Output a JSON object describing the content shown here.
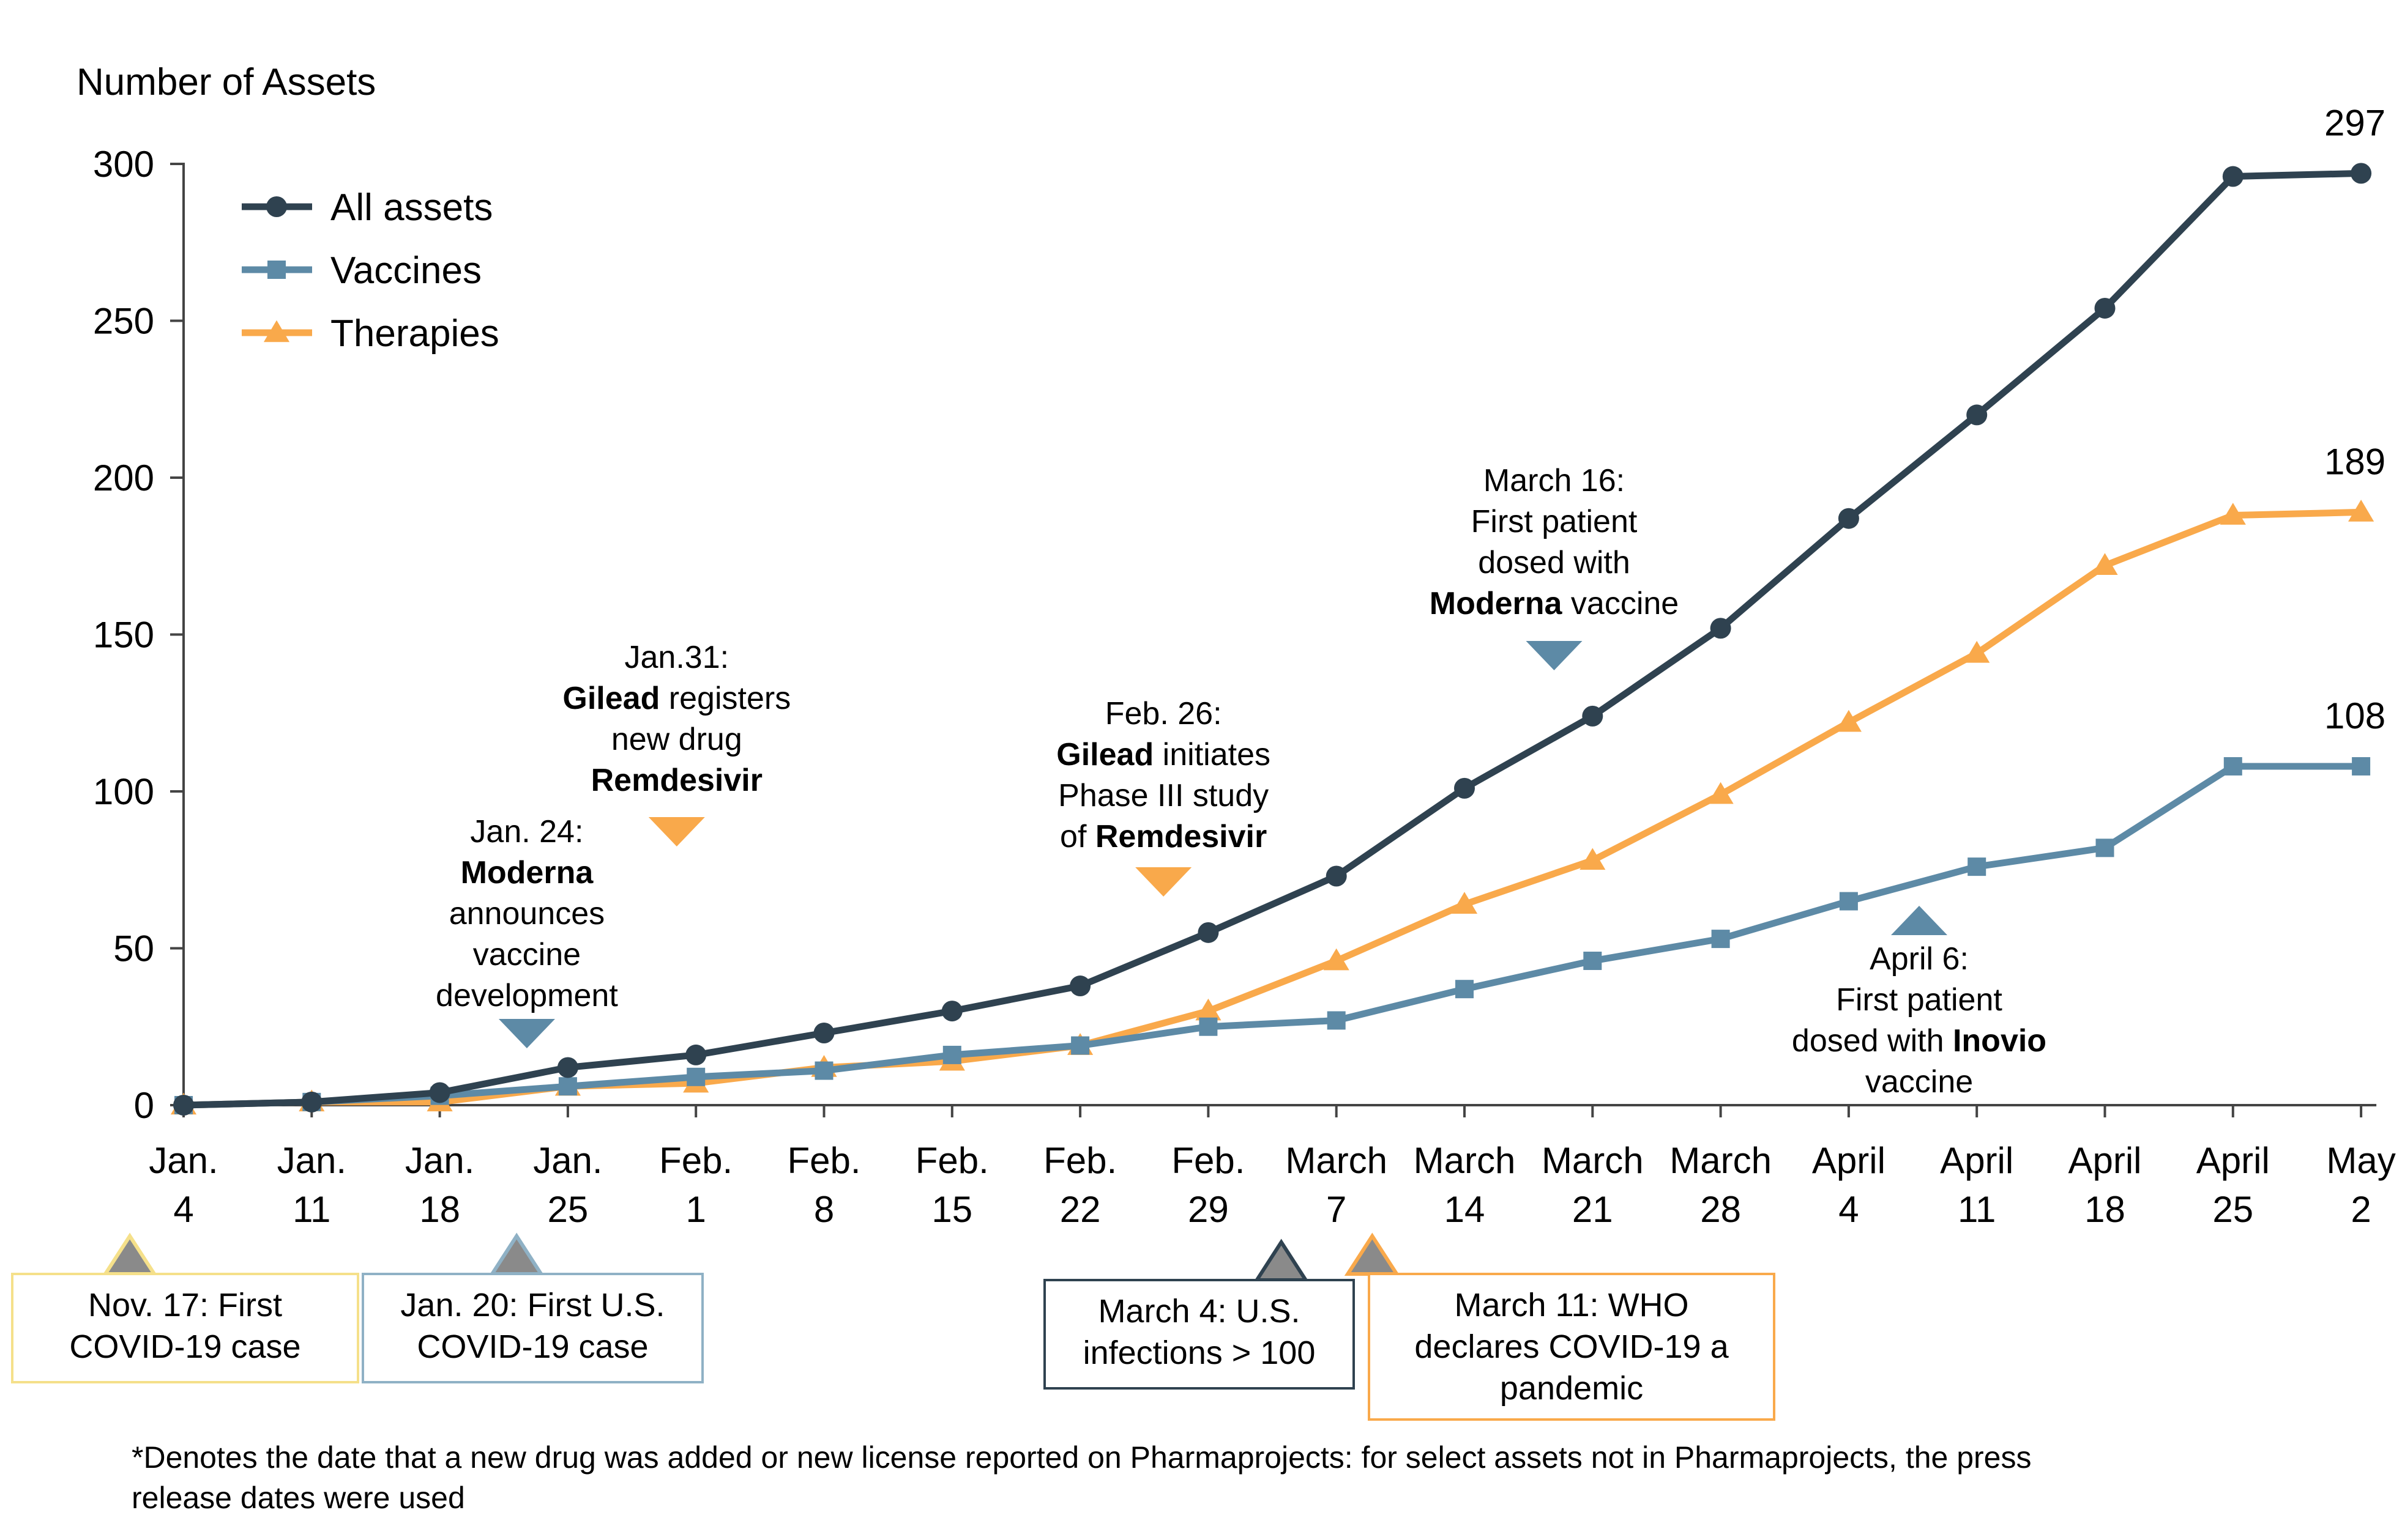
{
  "chart_data": {
    "type": "line",
    "title": "",
    "ylabel": "Number of Assets",
    "xlabel": "",
    "ylim": [
      0,
      300
    ],
    "yticks": [
      0,
      50,
      100,
      150,
      200,
      250,
      300
    ],
    "grid": false,
    "legend_position": "top-left",
    "categories": [
      {
        "top": "Jan.",
        "bottom": "4"
      },
      {
        "top": "Jan.",
        "bottom": "11"
      },
      {
        "top": "Jan.",
        "bottom": "18"
      },
      {
        "top": "Jan.",
        "bottom": "25"
      },
      {
        "top": "Feb.",
        "bottom": "1"
      },
      {
        "top": "Feb.",
        "bottom": "8"
      },
      {
        "top": "Feb.",
        "bottom": "15"
      },
      {
        "top": "Feb.",
        "bottom": "22"
      },
      {
        "top": "Feb.",
        "bottom": "29"
      },
      {
        "top": "March",
        "bottom": "7"
      },
      {
        "top": "March",
        "bottom": "14"
      },
      {
        "top": "March",
        "bottom": "21"
      },
      {
        "top": "March",
        "bottom": "28"
      },
      {
        "top": "April",
        "bottom": "4"
      },
      {
        "top": "April",
        "bottom": "11"
      },
      {
        "top": "April",
        "bottom": "18"
      },
      {
        "top": "April",
        "bottom": "25"
      },
      {
        "top": "May",
        "bottom": "2"
      }
    ],
    "series": [
      {
        "name": "All assets",
        "color": "#2f4250",
        "marker": "circle",
        "values": [
          0,
          1,
          4,
          12,
          16,
          23,
          30,
          38,
          55,
          73,
          101,
          124,
          152,
          187,
          220,
          254,
          296,
          297
        ],
        "end_label": "297"
      },
      {
        "name": "Vaccines",
        "color": "#5d8aa6",
        "marker": "square",
        "values": [
          0,
          1,
          3,
          6,
          9,
          11,
          16,
          19,
          25,
          27,
          37,
          46,
          53,
          65,
          76,
          82,
          108,
          108
        ],
        "end_label": "108"
      },
      {
        "name": "Therapies",
        "color": "#f9a94b",
        "marker": "triangle",
        "values": [
          0,
          1,
          1,
          6,
          7,
          12,
          14,
          19,
          30,
          46,
          64,
          78,
          99,
          122,
          144,
          172,
          188,
          189
        ],
        "end_label": "189"
      }
    ],
    "annotations": [
      {
        "id": "jan24",
        "x": 2.68,
        "arrow_y": 0,
        "arrow_dir": "down",
        "color": "#5d8aa6",
        "lines": [
          [
            {
              "t": "Jan. 24:"
            }
          ],
          [
            {
              "t": "Moderna",
              "b": true
            }
          ],
          [
            {
              "t": "announces"
            }
          ],
          [
            {
              "t": "vaccine"
            }
          ],
          [
            {
              "t": "development"
            }
          ]
        ]
      },
      {
        "id": "jan31",
        "x": 3.85,
        "arrow_dir": "down",
        "color": "#f9a94b",
        "lines": [
          [
            {
              "t": "Jan.31:"
            }
          ],
          [
            {
              "t": "Gilead",
              "b": true
            },
            {
              "t": " registers"
            }
          ],
          [
            {
              "t": "new drug"
            }
          ],
          [
            {
              "t": "Remdesivir",
              "b": true
            }
          ]
        ]
      },
      {
        "id": "feb26",
        "x": 7.65,
        "arrow_dir": "down",
        "color": "#f9a94b",
        "lines": [
          [
            {
              "t": "Feb. 26:"
            }
          ],
          [
            {
              "t": "Gilead",
              "b": true
            },
            {
              "t": " initiates"
            }
          ],
          [
            {
              "t": "Phase III study"
            }
          ],
          [
            {
              "t": "of "
            },
            {
              "t": "Remdesivir",
              "b": true
            }
          ]
        ]
      },
      {
        "id": "mar16",
        "x": 10.7,
        "arrow_dir": "down",
        "color": "#5d8aa6",
        "lines": [
          [
            {
              "t": "March 16:"
            }
          ],
          [
            {
              "t": "First patient"
            }
          ],
          [
            {
              "t": "dosed with"
            }
          ],
          [
            {
              "t": "Moderna",
              "b": true
            },
            {
              "t": " vaccine"
            }
          ]
        ]
      },
      {
        "id": "apr6",
        "x": 13.55,
        "arrow_dir": "up",
        "color": "#5d8aa6",
        "lines": [
          [
            {
              "t": "April 6:"
            }
          ],
          [
            {
              "t": "First patient"
            }
          ],
          [
            {
              "t": "dosed with "
            },
            {
              "t": "Inovio",
              "b": true
            }
          ],
          [
            {
              "t": "vaccine"
            }
          ]
        ]
      }
    ],
    "event_boxes": [
      {
        "id": "nov17",
        "x": -0.42,
        "border": "#f5e08a",
        "lines": [
          "Nov. 17: First",
          "COVID-19 case"
        ]
      },
      {
        "id": "jan20",
        "x": 2.6,
        "border": "#8fb1c5",
        "lines": [
          "Jan. 20: First U.S.",
          "COVID-19 case"
        ]
      },
      {
        "id": "mar4",
        "x": 8.57,
        "border": "#2f4250",
        "lines": [
          "March 4: U.S.",
          "infections > 100"
        ]
      },
      {
        "id": "mar11",
        "x": 9.28,
        "border": "#f9a94b",
        "lines": [
          "March 11: WHO",
          "declares COVID-19 a",
          "pandemic"
        ]
      }
    ]
  },
  "footnote": {
    "line1": "*Denotes the date that a new drug was added or new license reported on Pharmaprojects: for select assets not in Pharmaprojects, the press",
    "line2": "release dates were used"
  }
}
